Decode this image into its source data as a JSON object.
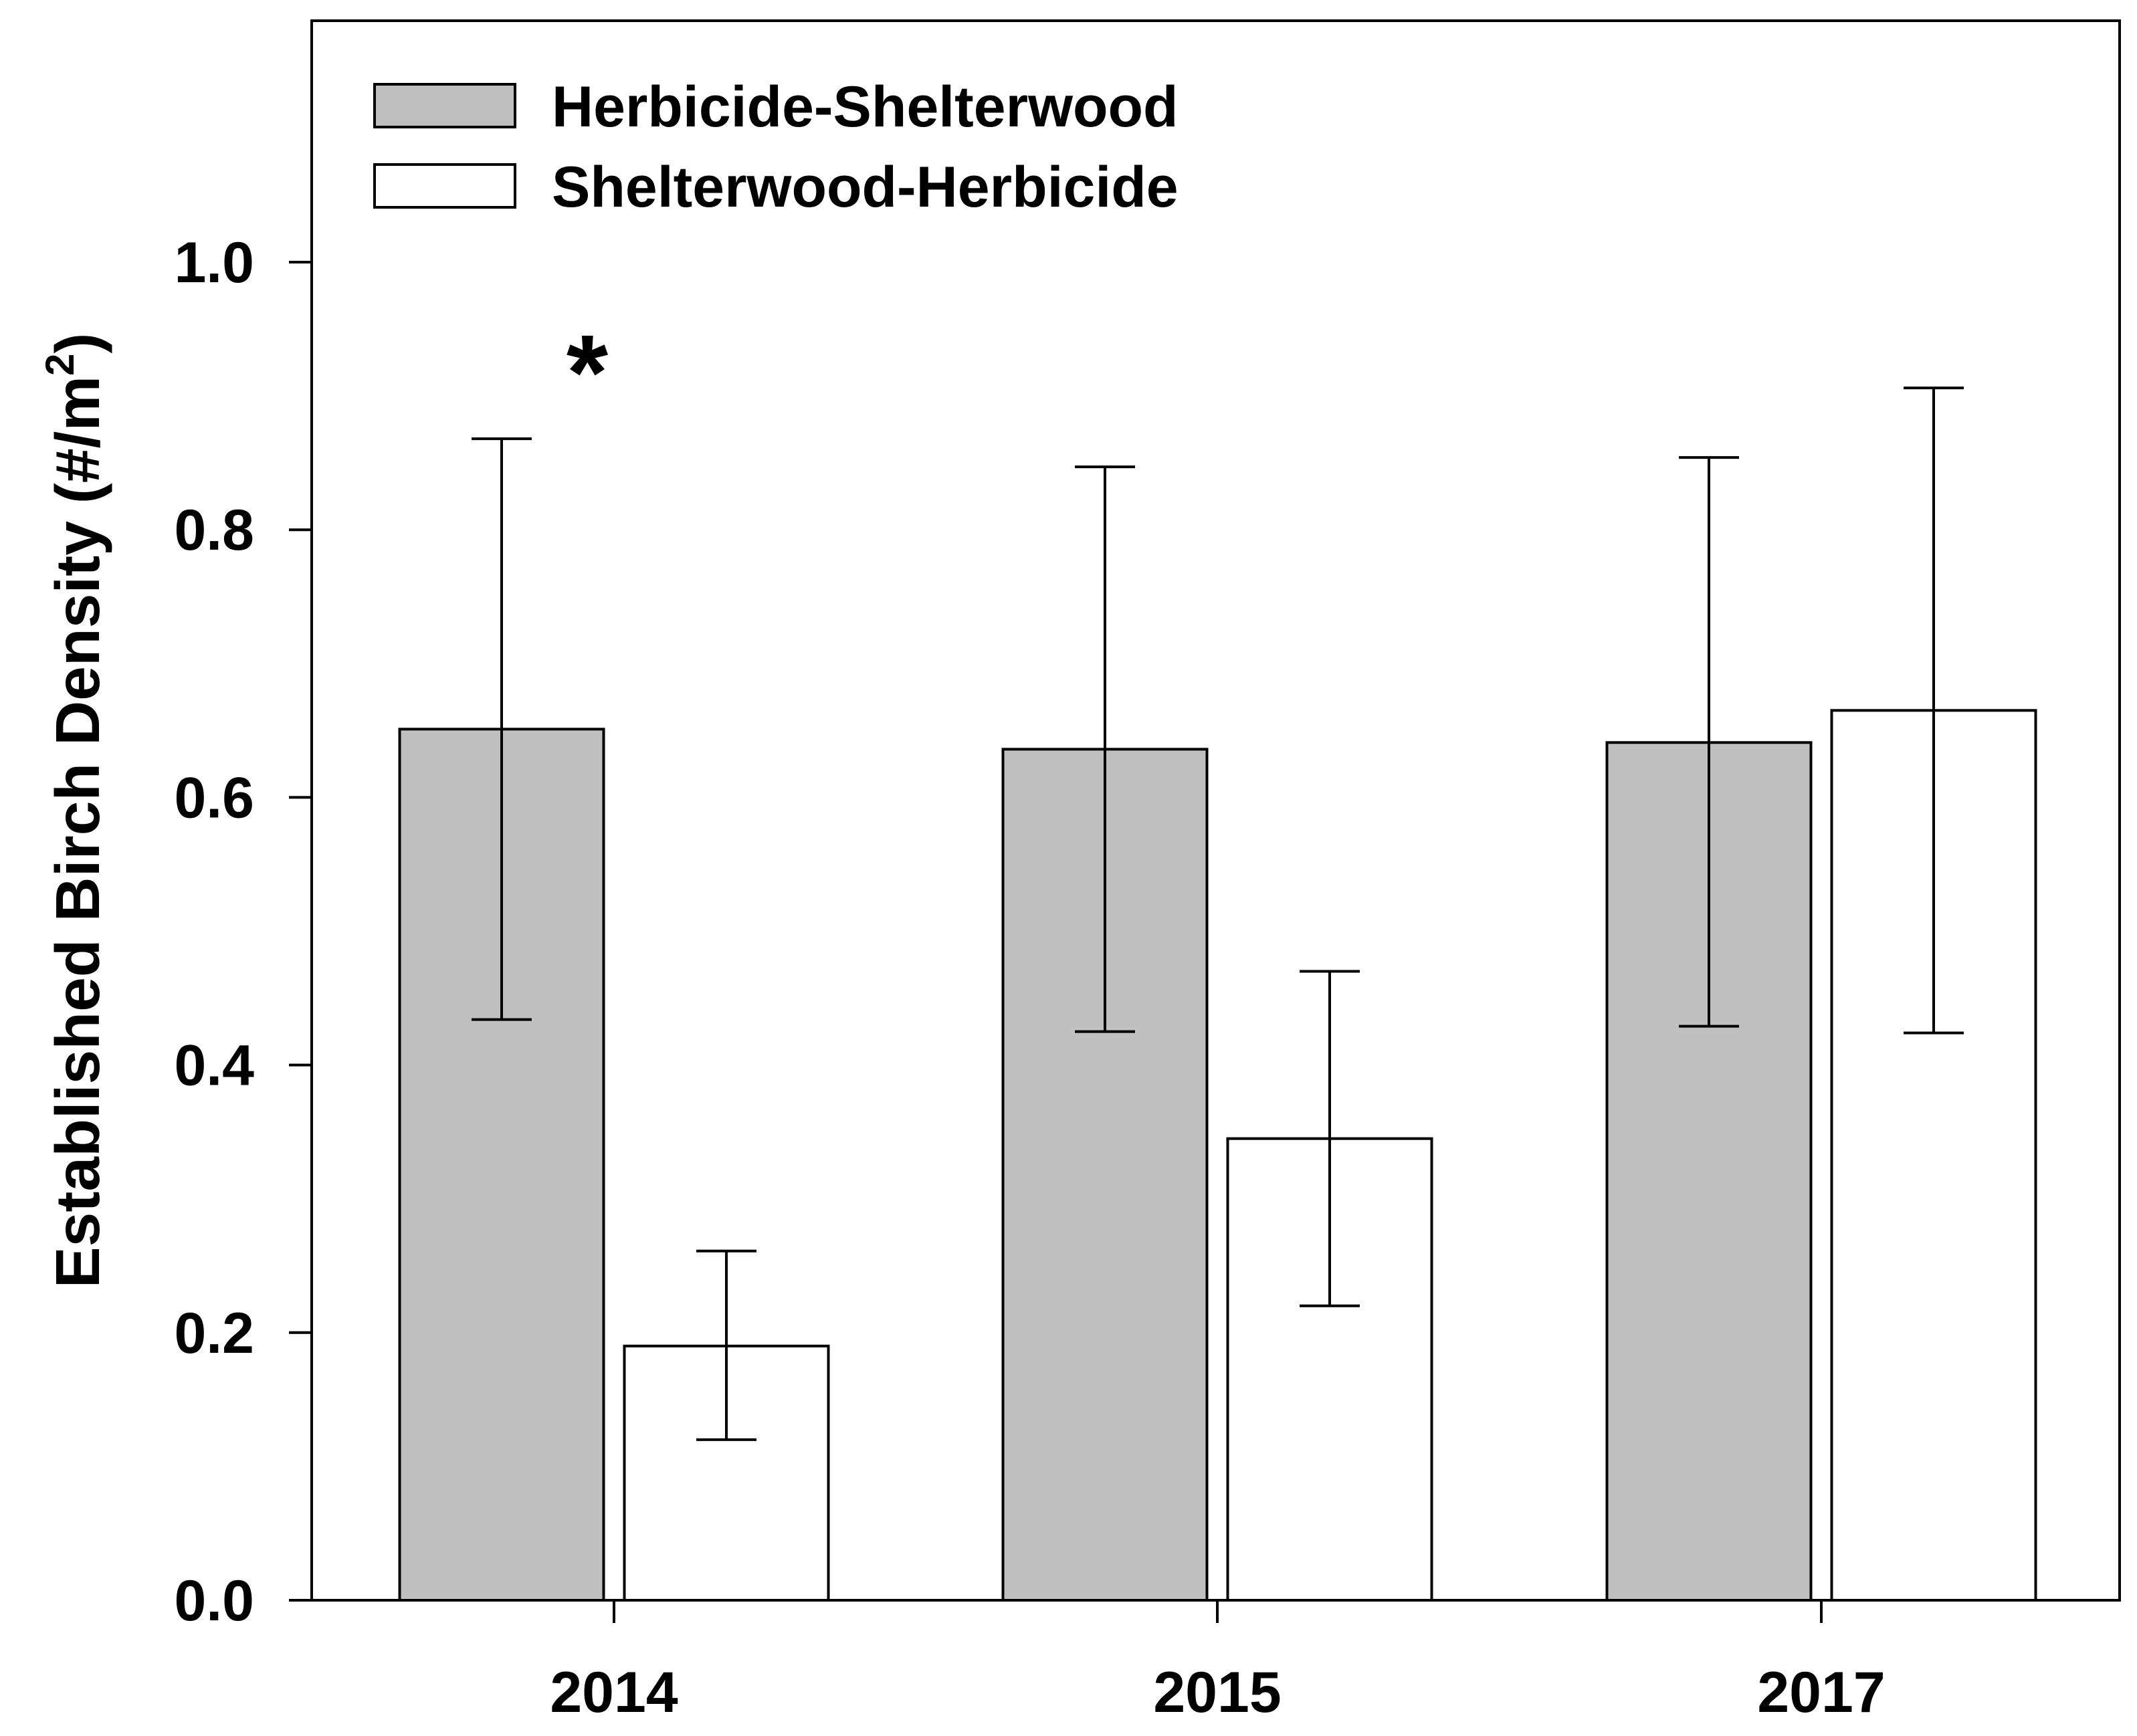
{
  "chart_data": {
    "type": "bar",
    "title": "",
    "xlabel": "",
    "ylabel": "Established Birch Density (#/m",
    "ylabel_superscript": "2",
    "ylabel_close": ")",
    "ylim": [
      0,
      1.18
    ],
    "yticks": [
      0.0,
      0.2,
      0.4,
      0.6,
      0.8,
      1.0
    ],
    "ytick_labels": [
      "0.0",
      "0.2",
      "0.4",
      "0.6",
      "0.8",
      "1.0"
    ],
    "categories": [
      "2014",
      "2015",
      "2017"
    ],
    "series": [
      {
        "name": "Herbicide-Shelterwood",
        "color": "#c0c0c0",
        "values": [
          0.651,
          0.636,
          0.641
        ],
        "err_upper": [
          0.868,
          0.847,
          0.854
        ],
        "err_lower": [
          0.434,
          0.425,
          0.429
        ]
      },
      {
        "name": "Shelterwood-Herbicide",
        "color": "#ffffff",
        "values": [
          0.19,
          0.345,
          0.665
        ],
        "err_upper": [
          0.261,
          0.47,
          0.906
        ],
        "err_lower": [
          0.12,
          0.22,
          0.424
        ]
      }
    ],
    "annotations": [
      {
        "text": "*",
        "category": "2014",
        "value": 0.94
      }
    ],
    "legend": "top-left",
    "grid": false
  }
}
